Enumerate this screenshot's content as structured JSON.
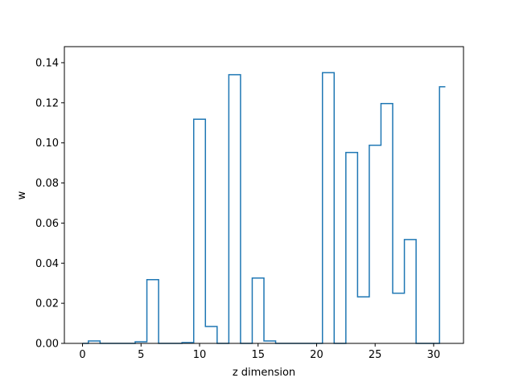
{
  "chart_data": {
    "type": "line",
    "drawstyle": "steps-mid",
    "title": "",
    "xlabel": "z dimension",
    "ylabel": "w",
    "xlim": [
      -1.55,
      32.55
    ],
    "ylim": [
      0.0,
      0.148
    ],
    "grid": false,
    "line_color": "#1f77b4",
    "x_ticks": [
      0,
      5,
      10,
      15,
      20,
      25,
      30
    ],
    "x_tick_labels": [
      "0",
      "5",
      "10",
      "15",
      "20",
      "25",
      "30"
    ],
    "y_ticks": [
      0.0,
      0.02,
      0.04,
      0.06,
      0.08,
      0.1,
      0.12,
      0.14
    ],
    "y_tick_labels": [
      "0.00",
      "0.02",
      "0.04",
      "0.06",
      "0.08",
      "0.10",
      "0.12",
      "0.14"
    ],
    "x": [
      0,
      1,
      2,
      3,
      4,
      5,
      6,
      7,
      8,
      9,
      10,
      11,
      12,
      13,
      14,
      15,
      16,
      17,
      18,
      19,
      20,
      21,
      22,
      23,
      24,
      25,
      26,
      27,
      28,
      29,
      30,
      31
    ],
    "values": [
      0.0,
      0.0012,
      0.0,
      0.0,
      0.0,
      0.0008,
      0.0318,
      0.0,
      0.0,
      0.0004,
      0.1118,
      0.0084,
      0.0,
      0.134,
      0.0,
      0.0326,
      0.0012,
      0.0,
      0.0,
      0.0,
      0.0,
      0.135,
      0.0,
      0.0952,
      0.0232,
      0.0988,
      0.1196,
      0.025,
      0.0518,
      0.0,
      0.0,
      0.128
    ]
  }
}
